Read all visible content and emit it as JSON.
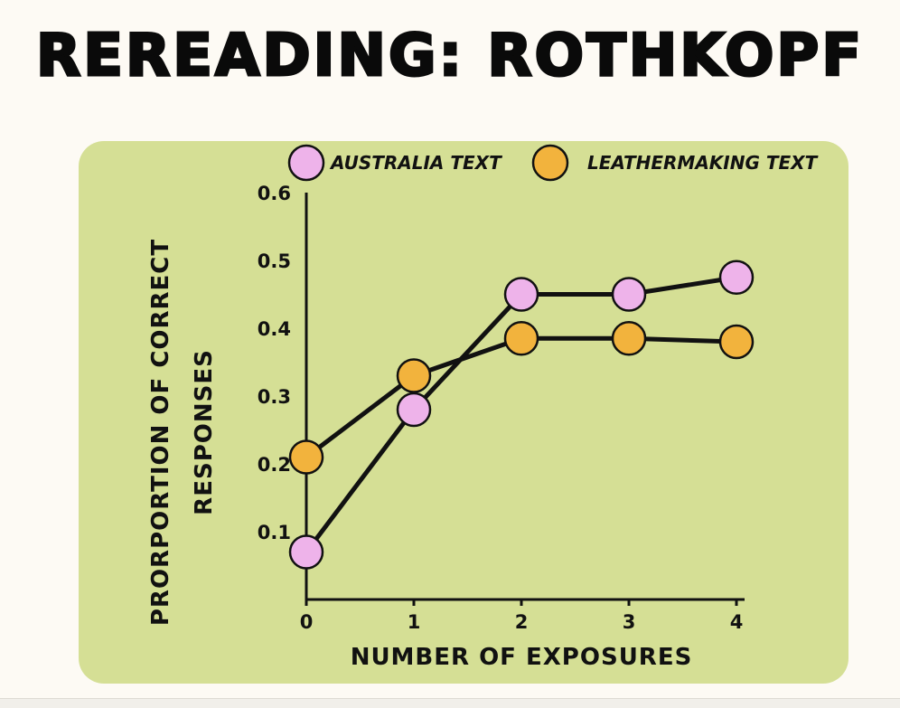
{
  "page": {
    "title": "REREADING: ROTHKOPF"
  },
  "chart_data": {
    "type": "line",
    "title": "REREADING: ROTHKOPF",
    "xlabel": "NUMBER OF EXPOSURES",
    "ylabel_lines": [
      "PRORPORTION OF CORRECT",
      "RESPONSES"
    ],
    "x": [
      0,
      1,
      2,
      3,
      4
    ],
    "x_ticks": [
      "0",
      "1",
      "2",
      "3",
      "4"
    ],
    "y_ticks": [
      "0.1",
      "0.2",
      "0.3",
      "0.4",
      "0.5",
      "0.6"
    ],
    "ylim": [
      0,
      0.6
    ],
    "xlim": [
      0,
      4
    ],
    "grid": false,
    "legend_position": "top",
    "series": [
      {
        "name": "AUSTRALIA TEXT",
        "values": [
          0.07,
          0.28,
          0.45,
          0.45,
          0.475
        ],
        "color": "#eeb3ea"
      },
      {
        "name": "LEATHERMAKING TEXT",
        "values": [
          0.21,
          0.33,
          0.385,
          0.385,
          0.38
        ],
        "color": "#f2b33d"
      }
    ]
  }
}
